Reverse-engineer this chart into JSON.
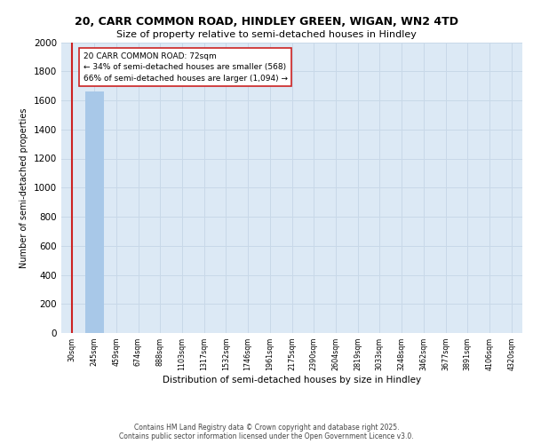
{
  "title_line1": "20, CARR COMMON ROAD, HINDLEY GREEN, WIGAN, WN2 4TD",
  "title_line2": "Size of property relative to semi-detached houses in Hindley",
  "xlabel": "Distribution of semi-detached houses by size in Hindley",
  "ylabel": "Number of semi-detached properties",
  "categories": [
    "30sqm",
    "245sqm",
    "459sqm",
    "674sqm",
    "888sqm",
    "1103sqm",
    "1317sqm",
    "1532sqm",
    "1746sqm",
    "1961sqm",
    "2175sqm",
    "2390sqm",
    "2604sqm",
    "2819sqm",
    "3033sqm",
    "3248sqm",
    "3462sqm",
    "3677sqm",
    "3891sqm",
    "4106sqm",
    "4320sqm"
  ],
  "values": [
    0,
    1662,
    0,
    0,
    0,
    0,
    0,
    0,
    0,
    0,
    0,
    0,
    0,
    0,
    0,
    0,
    0,
    0,
    0,
    0,
    0
  ],
  "bar_color": "#a8c8e8",
  "red_line_index": 0,
  "red_line_color": "#cc2222",
  "ylim": [
    0,
    2000
  ],
  "yticks": [
    0,
    200,
    400,
    600,
    800,
    1000,
    1200,
    1400,
    1600,
    1800,
    2000
  ],
  "annotation_box_text": "20 CARR COMMON ROAD: 72sqm\n← 34% of semi-detached houses are smaller (568)\n66% of semi-detached houses are larger (1,094) →",
  "grid_color": "#c8d8e8",
  "bg_color": "#dce9f5",
  "footer": "Contains HM Land Registry data © Crown copyright and database right 2025.\nContains public sector information licensed under the Open Government Licence v3.0."
}
